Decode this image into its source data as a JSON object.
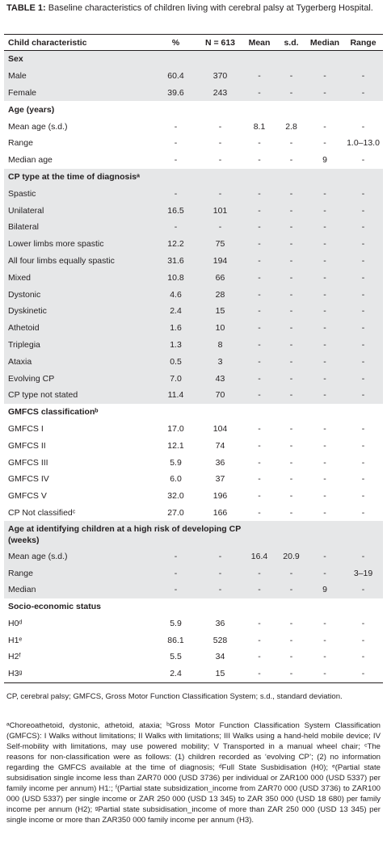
{
  "caption": {
    "label": "TABLE 1:",
    "text": "Baseline characteristics of children living with cerebral palsy at Tygerberg Hospital."
  },
  "table": {
    "headers": [
      "Child characteristic",
      "%",
      "N = 613",
      "Mean",
      "s.d.",
      "Median",
      "Range"
    ],
    "sections": [
      {
        "title": "Sex",
        "rows": [
          [
            "Male",
            "60.4",
            "370",
            "-",
            "-",
            "-",
            "-"
          ],
          [
            "Female",
            "39.6",
            "243",
            "-",
            "-",
            "-",
            "-"
          ]
        ]
      },
      {
        "title": "Age (years)",
        "rows": [
          [
            "Mean age (s.d.)",
            "-",
            "-",
            "8.1",
            "2.8",
            "-",
            "-"
          ],
          [
            "Range",
            "-",
            "-",
            "-",
            "-",
            "-",
            "1.0–13.0"
          ],
          [
            "Median age",
            "-",
            "-",
            "-",
            "-",
            "9",
            "-"
          ]
        ]
      },
      {
        "title": "CP type at the time of diagnosisᵃ",
        "rows": [
          [
            "Spastic",
            "-",
            "-",
            "-",
            "-",
            "-",
            "-"
          ],
          [
            "Unilateral",
            "16.5",
            "101",
            "-",
            "-",
            "-",
            "-"
          ],
          [
            "Bilateral",
            "-",
            "-",
            "-",
            "-",
            "-",
            "-"
          ],
          [
            "Lower limbs more spastic",
            "12.2",
            "75",
            "-",
            "-",
            "-",
            "-"
          ],
          [
            "All four limbs equally spastic",
            "31.6",
            "194",
            "-",
            "-",
            "-",
            "-"
          ],
          [
            "Mixed",
            "10.8",
            "66",
            "-",
            "-",
            "-",
            "-"
          ],
          [
            "Dystonic",
            "4.6",
            "28",
            "-",
            "-",
            "-",
            "-"
          ],
          [
            "Dyskinetic",
            "2.4",
            "15",
            "-",
            "-",
            "-",
            "-"
          ],
          [
            "Athetoid",
            "1.6",
            "10",
            "-",
            "-",
            "-",
            "-"
          ],
          [
            "Triplegia",
            "1.3",
            "8",
            "-",
            "-",
            "-",
            "-"
          ],
          [
            "Ataxia",
            "0.5",
            "3",
            "-",
            "-",
            "-",
            "-"
          ],
          [
            "Evolving CP",
            "7.0",
            "43",
            "-",
            "-",
            "-",
            "-"
          ],
          [
            "CP type not stated",
            "11.4",
            "70",
            "-",
            "-",
            "-",
            "-"
          ]
        ]
      },
      {
        "title": "GMFCS classificationᵇ",
        "rows": [
          [
            "GMFCS I",
            "17.0",
            "104",
            "-",
            "-",
            "-",
            "-"
          ],
          [
            "GMFCS II",
            "12.1",
            "74",
            "-",
            "-",
            "-",
            "-"
          ],
          [
            "GMFCS III",
            "5.9",
            "36",
            "-",
            "-",
            "-",
            "-"
          ],
          [
            "GMFCS IV",
            "6.0",
            "37",
            "-",
            "-",
            "-",
            "-"
          ],
          [
            "GMFCS V",
            "32.0",
            "196",
            "-",
            "-",
            "-",
            "-"
          ],
          [
            "CP Not classifiedᶜ",
            "27.0",
            "166",
            "-",
            "-",
            "-",
            "-"
          ]
        ]
      },
      {
        "title": "Age at identifying children at a high risk of developing CP (weeks)",
        "rows": [
          [
            "Mean age (s.d.)",
            "-",
            "-",
            "16.4",
            "20.9",
            "-",
            "-"
          ],
          [
            "Range",
            "-",
            "-",
            "-",
            "-",
            "-",
            "3–19"
          ],
          [
            "Median",
            "-",
            "-",
            "-",
            "-",
            "9",
            "-"
          ]
        ]
      },
      {
        "title": "Socio-economic status",
        "rows": [
          [
            "H0ᵈ",
            "5.9",
            "36",
            "-",
            "-",
            "-",
            "-"
          ],
          [
            "H1ᵉ",
            "86.1",
            "528",
            "-",
            "-",
            "-",
            "-"
          ],
          [
            "H2ᶠ",
            "5.5",
            "34",
            "-",
            "-",
            "-",
            "-"
          ],
          [
            "H3ᵍ",
            "2.4",
            "15",
            "-",
            "-",
            "-",
            "-"
          ]
        ]
      }
    ]
  },
  "footnotes": [
    "CP, cerebral palsy; GMFCS, Gross Motor Function Classification System; s.d., standard deviation.",
    "ᵃChoreoathetoid, dystonic, athetoid, ataxia; ᵇGross Motor Function Classification System Classification (GMFCS): I Walks without limitations; II Walks with limitations; III Walks using a hand-held mobile device; IV Self-mobility with limitations, may use powered mobility; V Transported in a manual wheel chair; ᶜThe reasons for non-classification were as follows: (1) children recorded as ‘evolving CP’; (2) no information regarding the GMFCS available at the time of diagnosis; ᵈFull State Susbidisation (H0); ᵉ(Partial state subsidisation single income less than ZAR70 000 (USD 3736) per individual or ZAR100 000 (USD 5337) per family income per annum) H1:; ᶠ(Partial state subsidization_income from ZAR70 000 (USD 3736) to ZAR100 000 (USD 5337) per single income or ZAR 250 000 (USD 13 345) to ZAR 350 000 (USD 18 680) per family income per annum (H2); ᵍPartial state subsidisation_income of more than ZAR 250 000 (USD 13 345) per single income or more than ZAR350 000 family income per annum (H3)."
  ]
}
